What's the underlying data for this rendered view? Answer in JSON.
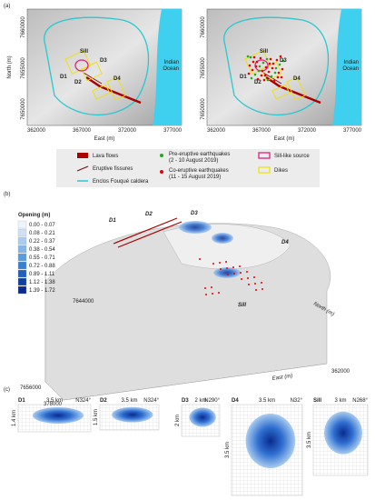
{
  "panel_a": {
    "label": "(a)",
    "y_axis_label": "North (m)",
    "x_axis_label": "East (m)",
    "yticks": [
      "7660000",
      "7655000",
      "7650000"
    ],
    "xticks": [
      "362000",
      "367000",
      "372000",
      "377000"
    ],
    "map_labels": {
      "sill": "Sill",
      "d1": "D1",
      "d2": "D2",
      "d3": "D3",
      "d4": "D4"
    },
    "ocean_label": [
      "Indian",
      "Ocean"
    ],
    "legend": {
      "lava": "Lava flows",
      "fissures": "Eruptive fissures",
      "caldera": "Enclos Fouqué caldera",
      "pre_eq": [
        "Pre-eruptive earthquakes",
        "(2 - 10 August 2019)"
      ],
      "co_eq": [
        "Co-eruptive earthquakes",
        "(11 - 15 August 2019)"
      ],
      "sill": "Sill-like source",
      "dikes": "Dikes"
    }
  },
  "panel_b": {
    "label": "(b)",
    "legend_title": "Opening (m)",
    "legend_ranges": [
      "0.00 - 0.07",
      "0.08 - 0.21",
      "0.22 - 0.37",
      "0.38 - 0.54",
      "0.55 - 0.71",
      "0.72 - 0.88",
      "0.89 - 1.11",
      "1.12 - 1.38",
      "1.39 - 1.72"
    ],
    "dike_labels": [
      "D1",
      "D2",
      "D3",
      "D4"
    ],
    "sill_label": "Sill",
    "north_label": "North (m)",
    "east_label": "East (m)",
    "corner_labels": [
      "7644000",
      "7656000",
      "378000",
      "362000"
    ]
  },
  "panel_c": {
    "label": "(c)",
    "panels": [
      {
        "name": "D1",
        "length": "3.5 km",
        "strike": "N324°",
        "width": "1.4 km"
      },
      {
        "name": "D2",
        "length": "3.5 km",
        "strike": "N324°",
        "width": "1.5 km"
      },
      {
        "name": "D3",
        "length": "2 km",
        "strike": "N290°",
        "width": "2 km"
      },
      {
        "name": "D4",
        "length": "3.5 km",
        "strike": "N32°",
        "width": "3.5 km"
      },
      {
        "name": "Sill",
        "length": "3 km",
        "strike": "N268°",
        "width": "3.5 km"
      }
    ]
  }
}
